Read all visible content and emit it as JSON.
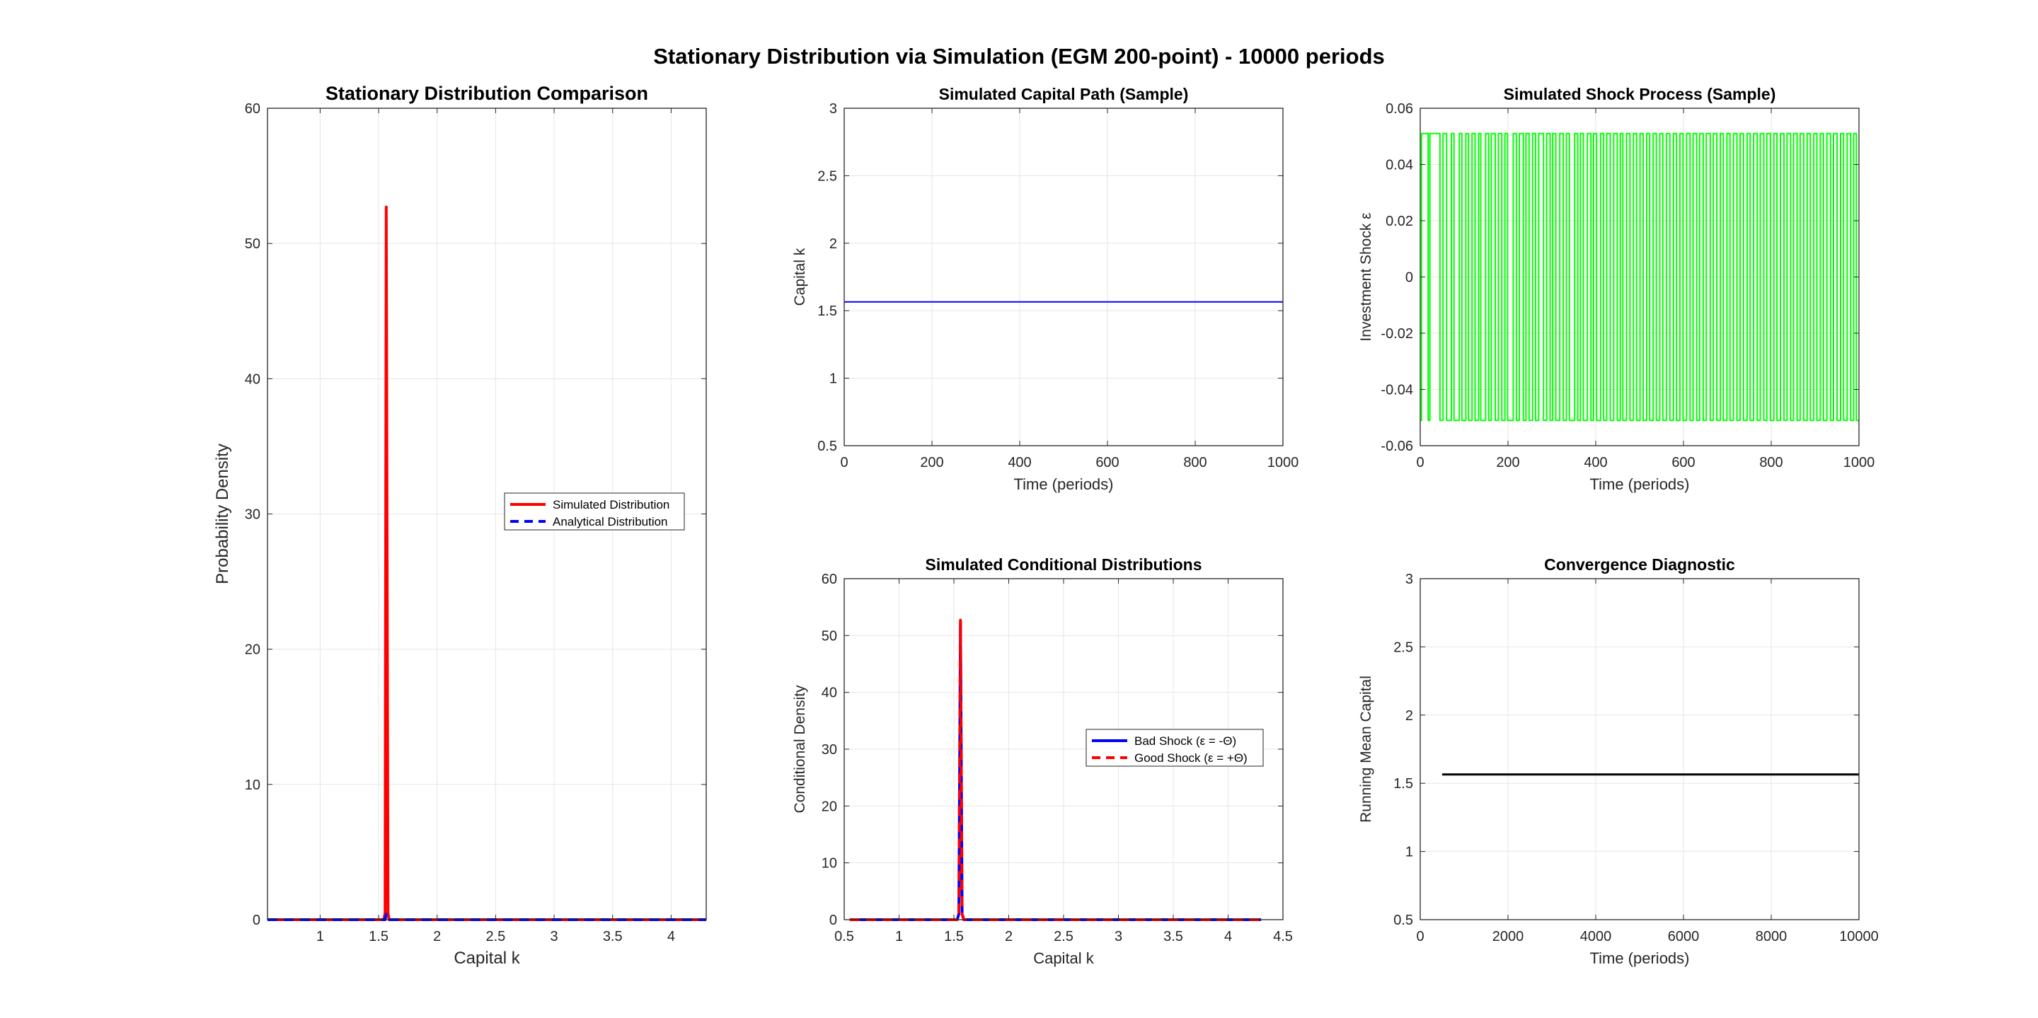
{
  "figure": {
    "suptitle": "Stationary Distribution via Simulation (EGM 200-point) - 10000 periods"
  },
  "chart_data": [
    {
      "id": "dist",
      "type": "line",
      "title": "Stationary Distribution Comparison",
      "xlabel": "Capital k",
      "ylabel": "Probability Density",
      "xlim": [
        0.55,
        4.3
      ],
      "ylim": [
        0,
        60
      ],
      "xticks": [
        1,
        1.5,
        2,
        2.5,
        3,
        3.5,
        4
      ],
      "yticks": [
        0,
        10,
        20,
        30,
        40,
        50,
        60
      ],
      "grid": true,
      "legend": "center-right",
      "series": [
        {
          "name": "Simulated Distribution",
          "color": "#ff0000",
          "style": "solid",
          "x": [
            0.55,
            1.545,
            1.555,
            1.565,
            1.58,
            1.59,
            4.3
          ],
          "y": [
            0,
            0,
            0.5,
            52.7,
            0.5,
            0,
            0
          ]
        },
        {
          "name": "Analytical Distribution",
          "color": "#0000ff",
          "style": "dashed",
          "x": [
            0.55,
            1.555,
            1.565,
            1.575,
            4.3
          ],
          "y": [
            0,
            0,
            0.4,
            0,
            0
          ]
        }
      ]
    },
    {
      "id": "cap",
      "type": "line",
      "title": "Simulated Capital Path (Sample)",
      "xlabel": "Time (periods)",
      "ylabel": "Capital k",
      "xlim": [
        0,
        1000
      ],
      "ylim": [
        0.5,
        3
      ],
      "xticks": [
        0,
        200,
        400,
        600,
        800,
        1000
      ],
      "yticks": [
        0.5,
        1,
        1.5,
        2,
        2.5,
        3
      ],
      "grid": true,
      "series": [
        {
          "color": "#0000ff",
          "style": "solid",
          "x": [
            0,
            1000
          ],
          "y": [
            1.565,
            1.565
          ]
        }
      ]
    },
    {
      "id": "shock",
      "type": "line",
      "title": "Simulated Shock Process (Sample)",
      "xlabel": "Time (periods)",
      "ylabel": "Investment Shock ε",
      "xlim": [
        0,
        1000
      ],
      "ylim": [
        -0.06,
        0.06
      ],
      "xticks": [
        0,
        200,
        400,
        600,
        800,
        1000
      ],
      "yticks": [
        -0.06,
        -0.04,
        -0.02,
        0,
        0.02,
        0.04,
        0.06
      ],
      "grid": true,
      "series": [
        {
          "color": "#00ff00",
          "style": "solid",
          "low": -0.051,
          "high": 0.051,
          "switches": [
            3,
            18,
            22,
            45,
            52,
            60,
            71,
            77,
            89,
            95,
            104,
            110,
            118,
            125,
            133,
            138,
            149,
            156,
            162,
            171,
            178,
            186,
            193,
            199,
            212,
            219,
            226,
            235,
            241,
            248,
            256,
            263,
            270,
            281,
            288,
            296,
            302,
            309,
            318,
            326,
            333,
            340,
            352,
            359,
            365,
            372,
            381,
            389,
            395,
            402,
            411,
            418,
            425,
            433,
            441,
            449,
            456,
            462,
            470,
            478,
            486,
            493,
            501,
            508,
            516,
            523,
            531,
            538,
            546,
            553,
            561,
            569,
            577,
            584,
            592,
            599,
            607,
            615,
            622,
            630,
            637,
            645,
            652,
            661,
            668,
            676,
            684,
            691,
            699,
            706,
            714,
            722,
            729,
            737,
            745,
            752,
            760,
            768,
            775,
            783,
            790,
            798,
            806,
            813,
            821,
            829,
            836,
            844,
            851,
            859,
            866,
            874,
            882,
            889,
            897,
            904,
            912,
            919,
            927,
            935,
            942,
            950,
            958,
            965,
            973,
            981,
            988,
            994
          ]
        }
      ]
    },
    {
      "id": "cond",
      "type": "line",
      "title": "Simulated Conditional Distributions",
      "xlabel": "Capital k",
      "ylabel": "Conditional Density",
      "xlim": [
        0.5,
        4.5
      ],
      "ylim": [
        0,
        60
      ],
      "xticks": [
        0.5,
        1,
        1.5,
        2,
        2.5,
        3,
        3.5,
        4,
        4.5
      ],
      "yticks": [
        0,
        10,
        20,
        30,
        40,
        50,
        60
      ],
      "grid": true,
      "legend": "center-right",
      "series": [
        {
          "name": "Bad Shock (ε = -Θ)",
          "color": "#0000ff",
          "style": "solid",
          "x": [
            0.55,
            1.53,
            1.545,
            1.56,
            1.575,
            1.59,
            4.3
          ],
          "y": [
            0,
            0,
            1,
            52.4,
            1,
            0,
            0
          ]
        },
        {
          "name": "Good Shock (ε = +Θ)",
          "color": "#ff0000",
          "style": "dashed",
          "x": [
            0.55,
            1.53,
            1.545,
            1.56,
            1.575,
            1.59,
            4.3
          ],
          "y": [
            0,
            0,
            1,
            52.7,
            1,
            0,
            0
          ]
        }
      ]
    },
    {
      "id": "conv",
      "type": "line",
      "title": "Convergence Diagnostic",
      "xlabel": "Time (periods)",
      "ylabel": "Running Mean Capital",
      "xlim": [
        0,
        10000
      ],
      "ylim": [
        0.5,
        3
      ],
      "xticks": [
        0,
        2000,
        4000,
        6000,
        8000,
        10000
      ],
      "yticks": [
        0.5,
        1,
        1.5,
        2,
        2.5,
        3
      ],
      "grid": true,
      "series": [
        {
          "color": "#000000",
          "style": "solid",
          "x": [
            500,
            10000
          ],
          "y": [
            1.565,
            1.565
          ]
        }
      ]
    }
  ]
}
